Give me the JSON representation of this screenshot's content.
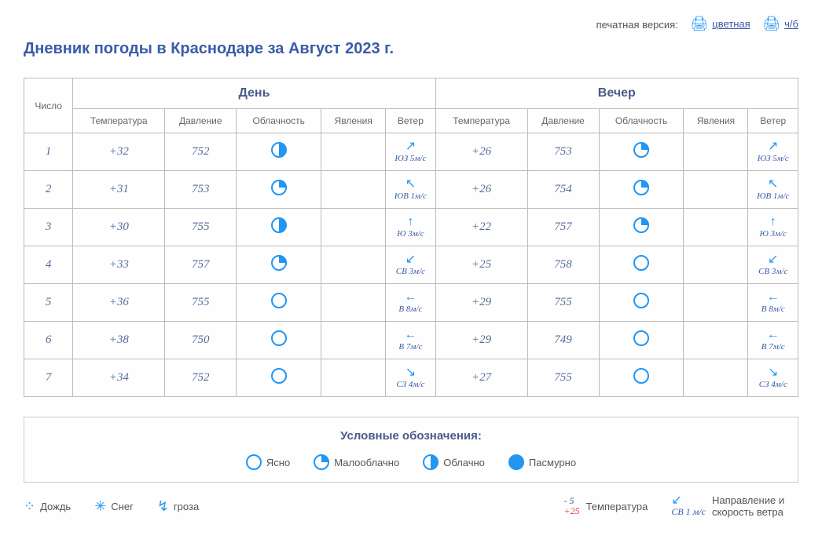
{
  "header": {
    "print_label": "печатная версия:",
    "color_link": "цветная",
    "bw_link": "ч/б",
    "title": "Дневник погоды в Краснодаре за Август 2023 г."
  },
  "table": {
    "col_date": "Число",
    "group_day": "День",
    "group_evening": "Вечер",
    "sub": {
      "temp": "Температура",
      "pressure": "Давление",
      "cloud": "Облачность",
      "phen": "Явления",
      "wind": "Ветер"
    }
  },
  "cloud_glyphs": {
    "clear": "clear",
    "partly": "partly",
    "half": "half",
    "full": "full"
  },
  "rows": [
    {
      "d": "1",
      "day": {
        "t": "+32",
        "p": "752",
        "c": "half",
        "wdir": "↗",
        "wtxt": "ЮЗ 5м/c"
      },
      "eve": {
        "t": "+26",
        "p": "753",
        "c": "partly",
        "wdir": "↗",
        "wtxt": "ЮЗ 5м/c"
      }
    },
    {
      "d": "2",
      "day": {
        "t": "+31",
        "p": "753",
        "c": "partly",
        "wdir": "↖",
        "wtxt": "ЮВ 1м/c"
      },
      "eve": {
        "t": "+26",
        "p": "754",
        "c": "partly",
        "wdir": "↖",
        "wtxt": "ЮВ 1м/c"
      }
    },
    {
      "d": "3",
      "day": {
        "t": "+30",
        "p": "755",
        "c": "half",
        "wdir": "↑",
        "wtxt": "Ю 3м/c"
      },
      "eve": {
        "t": "+22",
        "p": "757",
        "c": "partly",
        "wdir": "↑",
        "wtxt": "Ю 3м/c"
      }
    },
    {
      "d": "4",
      "day": {
        "t": "+33",
        "p": "757",
        "c": "partly",
        "wdir": "↙",
        "wtxt": "СВ 3м/c"
      },
      "eve": {
        "t": "+25",
        "p": "758",
        "c": "clear",
        "wdir": "↙",
        "wtxt": "СВ 3м/c"
      }
    },
    {
      "d": "5",
      "day": {
        "t": "+36",
        "p": "755",
        "c": "clear",
        "wdir": "←",
        "wtxt": "В 8м/c"
      },
      "eve": {
        "t": "+29",
        "p": "755",
        "c": "clear",
        "wdir": "←",
        "wtxt": "В 8м/c"
      }
    },
    {
      "d": "6",
      "day": {
        "t": "+38",
        "p": "750",
        "c": "clear",
        "wdir": "←",
        "wtxt": "В 7м/c"
      },
      "eve": {
        "t": "+29",
        "p": "749",
        "c": "clear",
        "wdir": "←",
        "wtxt": "В 7м/c"
      }
    },
    {
      "d": "7",
      "day": {
        "t": "+34",
        "p": "752",
        "c": "clear",
        "wdir": "↘",
        "wtxt": "СЗ 4м/c"
      },
      "eve": {
        "t": "+27",
        "p": "755",
        "c": "clear",
        "wdir": "↘",
        "wtxt": "СЗ 4м/c"
      }
    }
  ],
  "legend": {
    "title": "Условные обозначения:",
    "clear": "Ясно",
    "partly": "Малооблачно",
    "half": "Облачно",
    "full": "Пасмурно",
    "rain": "Дождь",
    "snow": "Снег",
    "storm": "гроза",
    "temp_cold": "- 5",
    "temp_hot": "+25",
    "temp_label": "Температура",
    "wind_example": "СВ 1 м/с",
    "wind_label": "Направление и скорость ветра"
  }
}
